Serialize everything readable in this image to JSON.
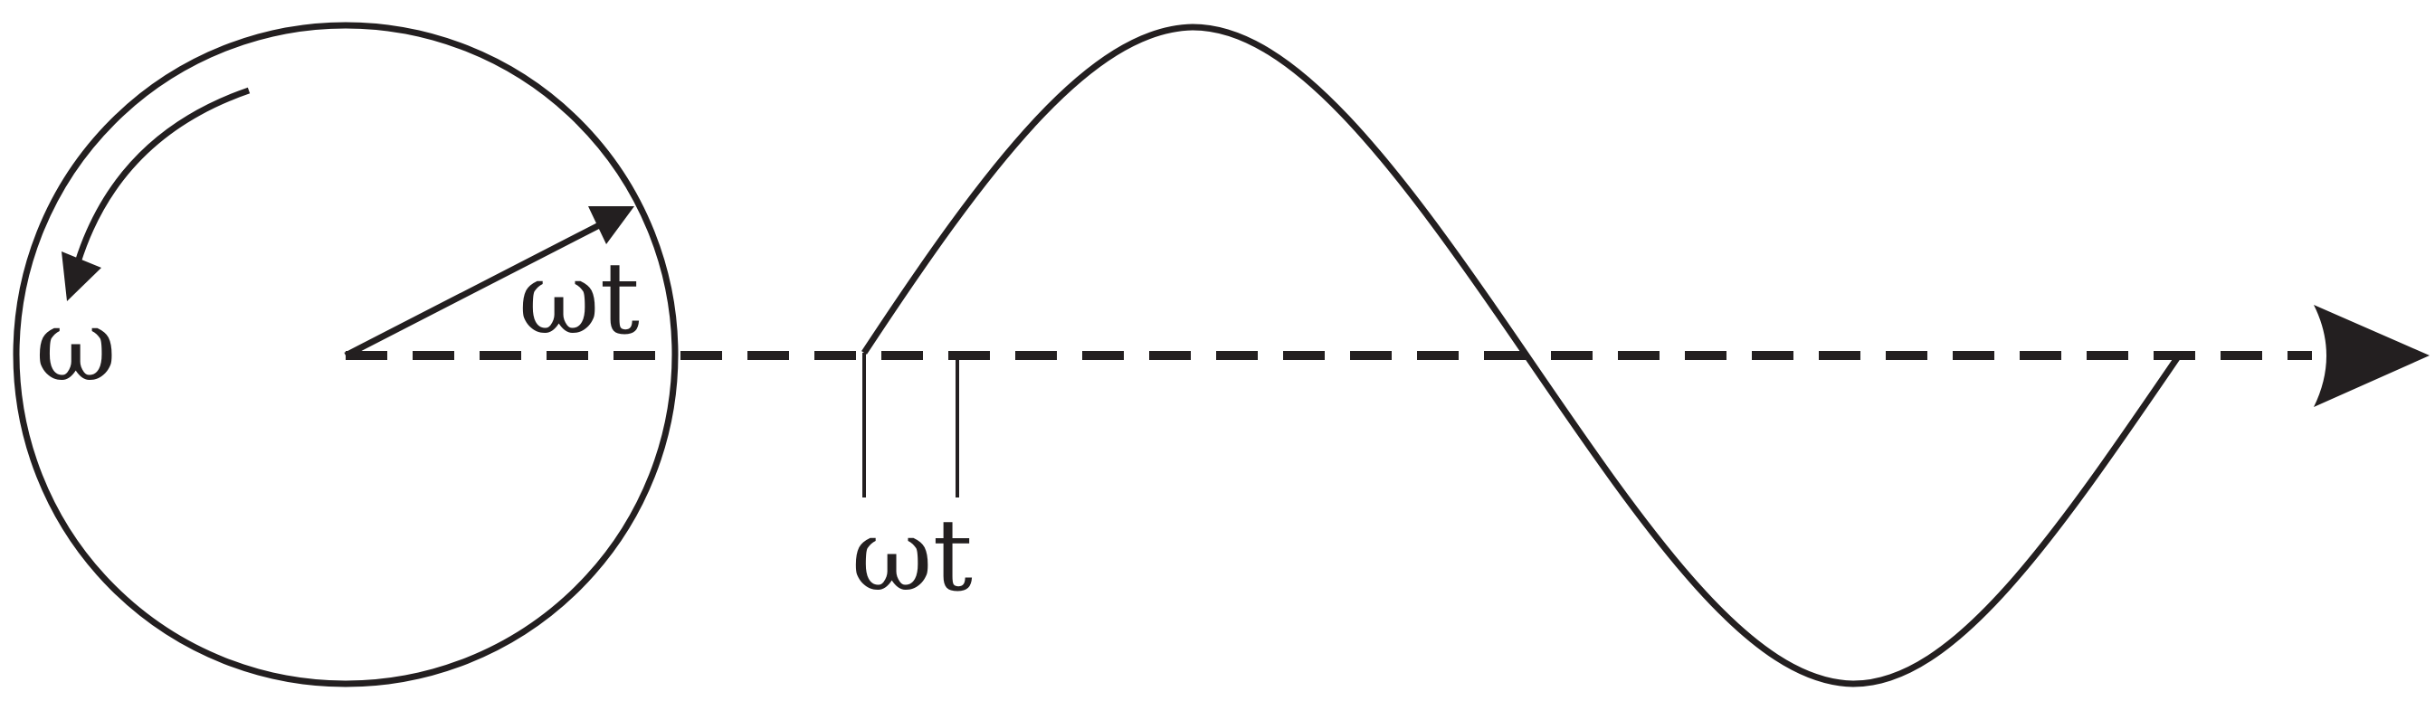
{
  "labels": {
    "omega": "ω",
    "omega_t_vector": "ωt",
    "omega_t_axis": "ωt"
  },
  "colors": {
    "stroke": "#231f20",
    "background": "#ffffff"
  }
}
